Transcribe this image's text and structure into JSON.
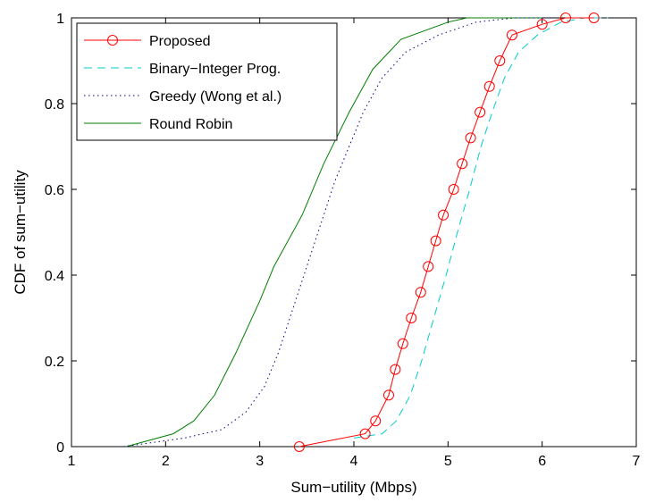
{
  "chart_data": {
    "type": "line",
    "title": "",
    "xlabel": "Sum−utility (Mbps)",
    "ylabel": "CDF of sum−utility",
    "xlim": [
      1,
      7
    ],
    "ylim": [
      0,
      1
    ],
    "xticks": [
      "1",
      "2",
      "3",
      "4",
      "5",
      "6",
      "7"
    ],
    "yticks": [
      "0",
      "0.2",
      "0.4",
      "0.6",
      "0.8",
      "1"
    ],
    "grid": false,
    "legend_position": "top-left",
    "series": [
      {
        "name": "Proposed",
        "color": "#ff0000",
        "line": "solid",
        "marker": "circle",
        "x": [
          3.42,
          4.12,
          4.23,
          4.37,
          4.44,
          4.52,
          4.61,
          4.71,
          4.79,
          4.87,
          4.95,
          5.06,
          5.15,
          5.24,
          5.34,
          5.44,
          5.55,
          5.68,
          6.0,
          6.25,
          6.55
        ],
        "y": [
          0.0,
          0.03,
          0.06,
          0.12,
          0.18,
          0.24,
          0.3,
          0.36,
          0.42,
          0.48,
          0.54,
          0.6,
          0.66,
          0.72,
          0.78,
          0.84,
          0.9,
          0.96,
          0.985,
          1.0,
          1.0
        ]
      },
      {
        "name": "Binary−Integer Prog.",
        "color": "#00cccc",
        "line": "dashed",
        "marker": "none",
        "x": [
          4.0,
          4.3,
          4.45,
          4.6,
          4.72,
          4.85,
          4.98,
          5.1,
          5.23,
          5.35,
          5.47,
          5.6,
          5.75,
          5.95,
          6.2,
          6.45,
          6.7
        ],
        "y": [
          0.02,
          0.03,
          0.06,
          0.12,
          0.2,
          0.3,
          0.4,
          0.5,
          0.6,
          0.7,
          0.78,
          0.86,
          0.92,
          0.96,
          0.99,
          1.0,
          1.0
        ]
      },
      {
        "name": "Greedy (Wong et al.)",
        "color": "#00007f",
        "line": "dotted",
        "marker": "none",
        "x": [
          1.55,
          2.2,
          2.6,
          2.85,
          3.05,
          3.2,
          3.35,
          3.5,
          3.65,
          3.8,
          3.95,
          4.1,
          4.3,
          4.55,
          4.9,
          5.3,
          5.7,
          6.1
        ],
        "y": [
          0.0,
          0.02,
          0.04,
          0.08,
          0.14,
          0.22,
          0.32,
          0.42,
          0.52,
          0.62,
          0.7,
          0.78,
          0.86,
          0.92,
          0.96,
          0.99,
          1.0,
          1.0
        ]
      },
      {
        "name": "Round Robin",
        "color": "#007f00",
        "line": "solid",
        "marker": "none",
        "x": [
          1.58,
          2.08,
          2.3,
          2.52,
          2.75,
          3.0,
          3.15,
          3.45,
          3.68,
          3.95,
          4.2,
          4.5,
          5.0,
          5.2,
          6.0
        ],
        "y": [
          0.0,
          0.03,
          0.06,
          0.12,
          0.22,
          0.34,
          0.42,
          0.54,
          0.66,
          0.78,
          0.88,
          0.95,
          0.99,
          1.0,
          1.0
        ]
      }
    ]
  }
}
